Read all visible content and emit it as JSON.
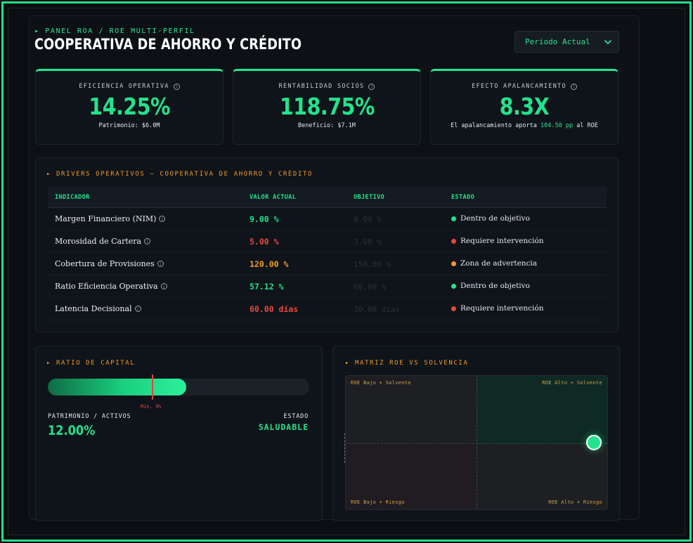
{
  "header": {
    "eyebrow": "▸ PANEL ROA / ROE MULTI-PERFIL",
    "title": "COOPERATIVA DE AHORRO Y CRÉDITO",
    "period_label": "Periodo Actual"
  },
  "kpis": [
    {
      "label": "EFICIENCIA OPERATIVA",
      "value": "14.25%",
      "sub": "Patrimonio: $6.0M"
    },
    {
      "label": "RENTABILIDAD SOCIOS",
      "value": "118.75%",
      "sub": "Beneficio: $7.1M"
    },
    {
      "label": "EFECTO APALANCAMIENTO",
      "value": "8.3X",
      "sub_pre": "El apalancamiento aporta ",
      "sub_hl": "104.50 pp",
      "sub_post": " al ROE"
    }
  ],
  "drivers": {
    "title": "▸ DRIVERS OPERATIVOS — COOPERATIVA DE AHORRO Y CRÉDITO",
    "columns": [
      "INDICADOR",
      "VALOR ACTUAL",
      "OBJETIVO",
      "ESTADO"
    ],
    "rows": [
      {
        "name": "Margen Financiero (NIM)",
        "value": "9.00 %",
        "objective": "8.00 %",
        "state": "Dentro de objetivo",
        "color": "#22e38c"
      },
      {
        "name": "Morosidad de Cartera",
        "value": "5.00 %",
        "objective": "3.00 %",
        "state": "Requiere intervención",
        "color": "#e5483e"
      },
      {
        "name": "Cobertura de Provisiones",
        "value": "120.00 %",
        "objective": "150.00 %",
        "state": "Zona de advertencia",
        "color": "#f09a2a"
      },
      {
        "name": "Ratio Eficiencia Operativa",
        "value": "57.12 %",
        "objective": "60.00 %",
        "state": "Dentro de objetivo",
        "color": "#22e38c"
      },
      {
        "name": "Latencia Decisional",
        "value": "60.00 días",
        "objective": "30.00 días",
        "state": "Requiere intervención",
        "color": "#e5483e"
      }
    ]
  },
  "capital": {
    "title": "▸ RATIO DE CAPITAL",
    "fill_fraction": 0.53,
    "min_label": "Mín. 9%",
    "left_label": "PATRIMONIO / ACTIVOS",
    "left_value": "12.00%",
    "right_label": "ESTADO",
    "right_value": "SALUDABLE"
  },
  "matrix": {
    "title": "▸ MATRIZ ROE VS SOLVENCIA",
    "q_tl": "ROE Bajo + Solvente",
    "q_tr": "ROE Alto + Solvente",
    "q_bl": "ROE Bajo + Riesgo",
    "q_br": "ROE Alto + Riesgo"
  },
  "colors": {
    "accent": "#22e38c",
    "warning": "#f09a2a",
    "danger": "#e5483e"
  }
}
